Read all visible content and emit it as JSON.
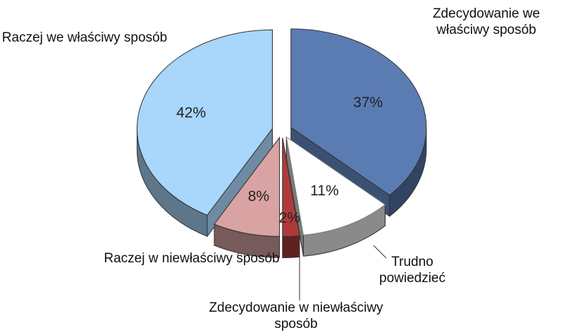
{
  "chart_data": {
    "type": "pie",
    "categories": [
      "Zdecydowanie we właściwy sposób",
      "Trudno powiedzieć",
      "Zdecydowanie w niewłaściwy sposób",
      "Raczej w niewłaściwy sposób",
      "Raczej we właściwy sposób"
    ],
    "values": [
      37,
      11,
      2,
      8,
      42
    ],
    "value_labels": [
      "37%",
      "11%",
      "2%",
      "8%",
      "42%"
    ],
    "colors": [
      "#5b7cb3",
      "#ffffff",
      "#b03a3a",
      "#d9a3a3",
      "#a9d6fb"
    ]
  }
}
